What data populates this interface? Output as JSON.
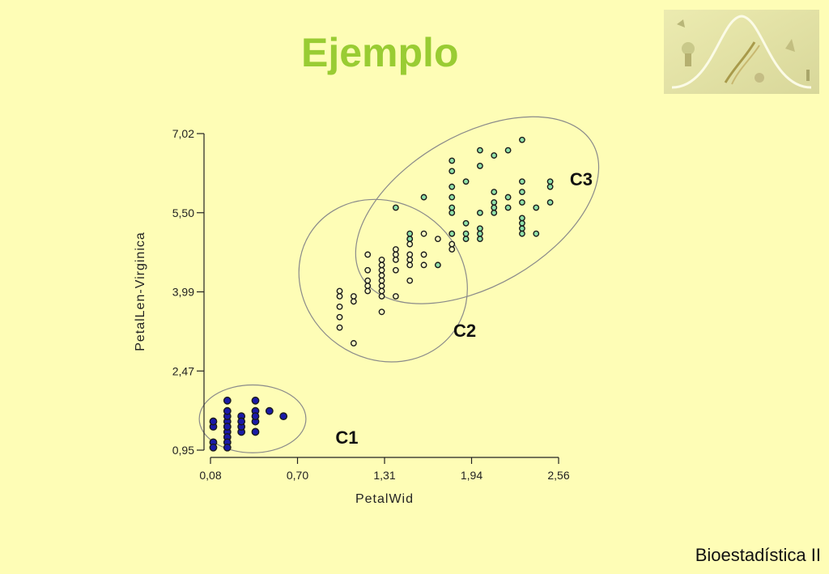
{
  "slide": {
    "title": "Ejemplo",
    "footer": "Bioestadística II",
    "logo_icon": "biology-genetics-collage-icon"
  },
  "colors": {
    "background": "#fefdb6",
    "title": "#99cc33",
    "c1_fill": "#1a1aa8",
    "c2_fill": "#fbfbc2",
    "c3_fill": "#8fe0a8",
    "ellipse_stroke": "#8a8a8a"
  },
  "chart_data": {
    "type": "scatter",
    "xlabel": "PetalWid",
    "ylabel": "PetalLen-Virginica",
    "xlim": [
      0.08,
      2.56
    ],
    "ylim": [
      0.95,
      7.02
    ],
    "xticks": [
      "0,08",
      "0,70",
      "1,31",
      "1,94",
      "2,56"
    ],
    "yticks": [
      "0,95",
      "2,47",
      "3,99",
      "5,50",
      "7,02"
    ],
    "grid": false,
    "series": [
      {
        "name": "C1",
        "points": [
          [
            0.1,
            1.4
          ],
          [
            0.1,
            1.5
          ],
          [
            0.1,
            1.1
          ],
          [
            0.1,
            1.0
          ],
          [
            0.2,
            1.4
          ],
          [
            0.2,
            1.3
          ],
          [
            0.2,
            1.5
          ],
          [
            0.2,
            1.6
          ],
          [
            0.2,
            1.7
          ],
          [
            0.2,
            1.2
          ],
          [
            0.2,
            1.9
          ],
          [
            0.2,
            1.1
          ],
          [
            0.2,
            1.0
          ],
          [
            0.2,
            1.4
          ],
          [
            0.3,
            1.3
          ],
          [
            0.3,
            1.4
          ],
          [
            0.3,
            1.6
          ],
          [
            0.3,
            1.5
          ],
          [
            0.4,
            1.5
          ],
          [
            0.4,
            1.7
          ],
          [
            0.4,
            1.3
          ],
          [
            0.4,
            1.9
          ],
          [
            0.4,
            1.6
          ],
          [
            0.5,
            1.7
          ],
          [
            0.6,
            1.6
          ]
        ]
      },
      {
        "name": "C2",
        "points": [
          [
            1.0,
            3.5
          ],
          [
            1.0,
            3.3
          ],
          [
            1.0,
            3.7
          ],
          [
            1.0,
            4.0
          ],
          [
            1.0,
            3.9
          ],
          [
            1.1,
            3.9
          ],
          [
            1.1,
            3.0
          ],
          [
            1.1,
            3.8
          ],
          [
            1.2,
            4.0
          ],
          [
            1.2,
            4.4
          ],
          [
            1.2,
            4.1
          ],
          [
            1.2,
            4.7
          ],
          [
            1.2,
            4.2
          ],
          [
            1.3,
            4.0
          ],
          [
            1.3,
            4.1
          ],
          [
            1.3,
            4.2
          ],
          [
            1.3,
            4.3
          ],
          [
            1.3,
            4.4
          ],
          [
            1.3,
            4.5
          ],
          [
            1.3,
            4.6
          ],
          [
            1.3,
            3.6
          ],
          [
            1.3,
            3.9
          ],
          [
            1.4,
            4.4
          ],
          [
            1.4,
            4.7
          ],
          [
            1.4,
            4.8
          ],
          [
            1.4,
            4.6
          ],
          [
            1.4,
            3.9
          ],
          [
            1.5,
            4.5
          ],
          [
            1.5,
            4.6
          ],
          [
            1.5,
            4.7
          ],
          [
            1.5,
            4.9
          ],
          [
            1.5,
            5.0
          ],
          [
            1.5,
            4.2
          ],
          [
            1.6,
            4.5
          ],
          [
            1.6,
            4.7
          ],
          [
            1.6,
            5.1
          ],
          [
            1.7,
            5.0
          ],
          [
            1.8,
            4.8
          ],
          [
            1.8,
            4.9
          ],
          [
            1.8,
            5.1
          ]
        ]
      },
      {
        "name": "C3",
        "points": [
          [
            1.4,
            5.6
          ],
          [
            1.5,
            5.0
          ],
          [
            1.5,
            5.1
          ],
          [
            1.6,
            5.8
          ],
          [
            1.7,
            4.5
          ],
          [
            1.8,
            5.5
          ],
          [
            1.8,
            5.6
          ],
          [
            1.8,
            6.0
          ],
          [
            1.8,
            6.3
          ],
          [
            1.8,
            6.5
          ],
          [
            1.8,
            5.8
          ],
          [
            1.8,
            5.1
          ],
          [
            1.9,
            5.0
          ],
          [
            1.9,
            5.1
          ],
          [
            1.9,
            5.3
          ],
          [
            1.9,
            6.1
          ],
          [
            2.0,
            5.0
          ],
          [
            2.0,
            5.1
          ],
          [
            2.0,
            5.2
          ],
          [
            2.0,
            5.5
          ],
          [
            2.0,
            6.4
          ],
          [
            2.0,
            6.7
          ],
          [
            2.1,
            5.5
          ],
          [
            2.1,
            5.6
          ],
          [
            2.1,
            5.7
          ],
          [
            2.1,
            5.9
          ],
          [
            2.1,
            6.6
          ],
          [
            2.2,
            5.6
          ],
          [
            2.2,
            5.8
          ],
          [
            2.2,
            6.7
          ],
          [
            2.3,
            5.1
          ],
          [
            2.3,
            5.2
          ],
          [
            2.3,
            5.3
          ],
          [
            2.3,
            5.4
          ],
          [
            2.3,
            5.7
          ],
          [
            2.3,
            5.9
          ],
          [
            2.3,
            6.1
          ],
          [
            2.3,
            6.9
          ],
          [
            2.4,
            5.1
          ],
          [
            2.4,
            5.6
          ],
          [
            2.5,
            5.7
          ],
          [
            2.5,
            6.0
          ],
          [
            2.5,
            6.1
          ]
        ]
      }
    ],
    "annotations": [
      {
        "label": "C1",
        "x_data": 0.97,
        "y_data": 1.2
      },
      {
        "label": "C2",
        "x_data": 1.81,
        "y_data": 3.25
      },
      {
        "label": "C3",
        "x_data": 2.64,
        "y_data": 6.15
      }
    ],
    "ellipses": [
      {
        "cluster": "C1",
        "cx": 0.38,
        "cy": 1.55,
        "rx_data": 0.38,
        "ry_data": 0.65,
        "angle": 0
      },
      {
        "cluster": "C2",
        "cx": 1.31,
        "cy": 4.2,
        "rx_data": 0.62,
        "ry_data": 1.5,
        "angle": 35
      },
      {
        "cluster": "C3",
        "cx": 1.98,
        "cy": 5.55,
        "rx_data": 0.95,
        "ry_data": 1.45,
        "angle": -30
      }
    ]
  }
}
